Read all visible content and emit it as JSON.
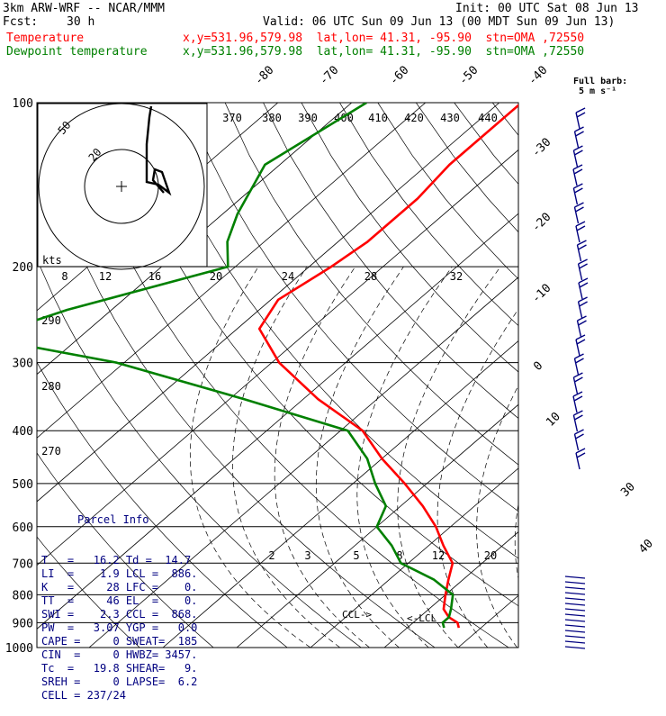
{
  "header": {
    "model": "3km ARW-WRF -- NCAR/MMM",
    "init": "Init: 00 UTC Sat 08 Jun 13",
    "fcst_label": "Fcst:",
    "fcst_value": "30 h",
    "valid": "Valid: 06 UTC Sun 09 Jun 13 (00 MDT Sun 09 Jun 13)",
    "temp_label": "Temperature",
    "temp_info": "x,y=531.96,579.98  lat,lon= 41.31, -95.90  stn=OMA ,72550",
    "dew_label": "Dewpoint temperature",
    "dew_info": "x,y=531.96,579.98  lat,lon= 41.31, -95.90  stn=OMA ,72550"
  },
  "barb_legend": {
    "title": "Full barb:",
    "value": "5 m s⁻¹"
  },
  "parcel": {
    "title": "Parcel Info",
    "rows": [
      "T   =   16.2 Td =  14.7",
      "LI  =    1.9 LCL =  886.",
      "K   =     28 LFC =    0.",
      "TT  =     46 EL  =    0.",
      "SWI =    2.3 CCL =  868.",
      "PW  =   3.07 YGP =   0.0",
      "CAPE =     0 SWEAT=  185",
      "CIN  =     0 HWBZ= 3457.",
      "Tc  =   19.8 SHEAR=   9.",
      "SREH =     0 LAPSE=  6.2",
      "CELL = 237/24"
    ]
  },
  "hodograph": {
    "rings": [
      "20",
      "50"
    ],
    "units": "kts"
  },
  "colors": {
    "temperature": "#ff0000",
    "dewpoint": "#008000",
    "barbs": "#000080",
    "grid": "#000000"
  },
  "chart_data": {
    "type": "line",
    "title": "",
    "pressure_levels": [
      100,
      200,
      300,
      400,
      500,
      600,
      700,
      800,
      900,
      1000
    ],
    "pressure_tick_labels": [
      "100",
      "200",
      "300",
      "400",
      "500",
      "600",
      "700",
      "800",
      "900",
      "1000"
    ],
    "skewed_temp_labels": [
      "-80",
      "-70",
      "-60",
      "-50",
      "-40",
      "-30",
      "-20",
      "-10",
      "0",
      "10",
      "30",
      "40"
    ],
    "theta_labels": [
      "370",
      "380",
      "390",
      "400",
      "410",
      "420",
      "430",
      "440"
    ],
    "theta_labels_low": [
      "290",
      "280",
      "270"
    ],
    "mixing_ratio_labels_top": [
      "8",
      "12",
      "16",
      "20",
      "24",
      "28",
      "32"
    ],
    "mixing_ratio_labels_low": [
      "2",
      "3",
      "5",
      "8",
      "12",
      "20"
    ],
    "annotations": [
      "CCL->",
      "<-LCL"
    ],
    "series": [
      {
        "name": "Temperature",
        "points": [
          [
            100,
            -57
          ],
          [
            130,
            -57
          ],
          [
            150,
            -56
          ],
          [
            180,
            -56
          ],
          [
            200,
            -57
          ],
          [
            230,
            -59
          ],
          [
            260,
            -57
          ],
          [
            300,
            -49
          ],
          [
            350,
            -38
          ],
          [
            400,
            -27
          ],
          [
            450,
            -20
          ],
          [
            500,
            -13
          ],
          [
            550,
            -7
          ],
          [
            600,
            -2
          ],
          [
            650,
            2
          ],
          [
            700,
            6
          ],
          [
            750,
            8
          ],
          [
            800,
            10
          ],
          [
            850,
            12
          ],
          [
            880,
            14
          ],
          [
            900,
            16
          ],
          [
            920,
            17
          ]
        ]
      },
      {
        "name": "Dewpoint temperature",
        "points": [
          [
            100,
            -78
          ],
          [
            130,
            -82
          ],
          [
            160,
            -78
          ],
          [
            180,
            -75
          ],
          [
            200,
            -71
          ],
          [
            240,
            -86
          ],
          [
            270,
            -93
          ],
          [
            300,
            -71
          ],
          [
            350,
            -48
          ],
          [
            400,
            -29
          ],
          [
            450,
            -22
          ],
          [
            500,
            -17
          ],
          [
            550,
            -12
          ],
          [
            600,
            -10
          ],
          [
            650,
            -5
          ],
          [
            700,
            -1
          ],
          [
            750,
            6
          ],
          [
            800,
            11
          ],
          [
            850,
            13
          ],
          [
            880,
            14
          ],
          [
            900,
            14
          ],
          [
            920,
            15
          ]
        ]
      }
    ]
  }
}
